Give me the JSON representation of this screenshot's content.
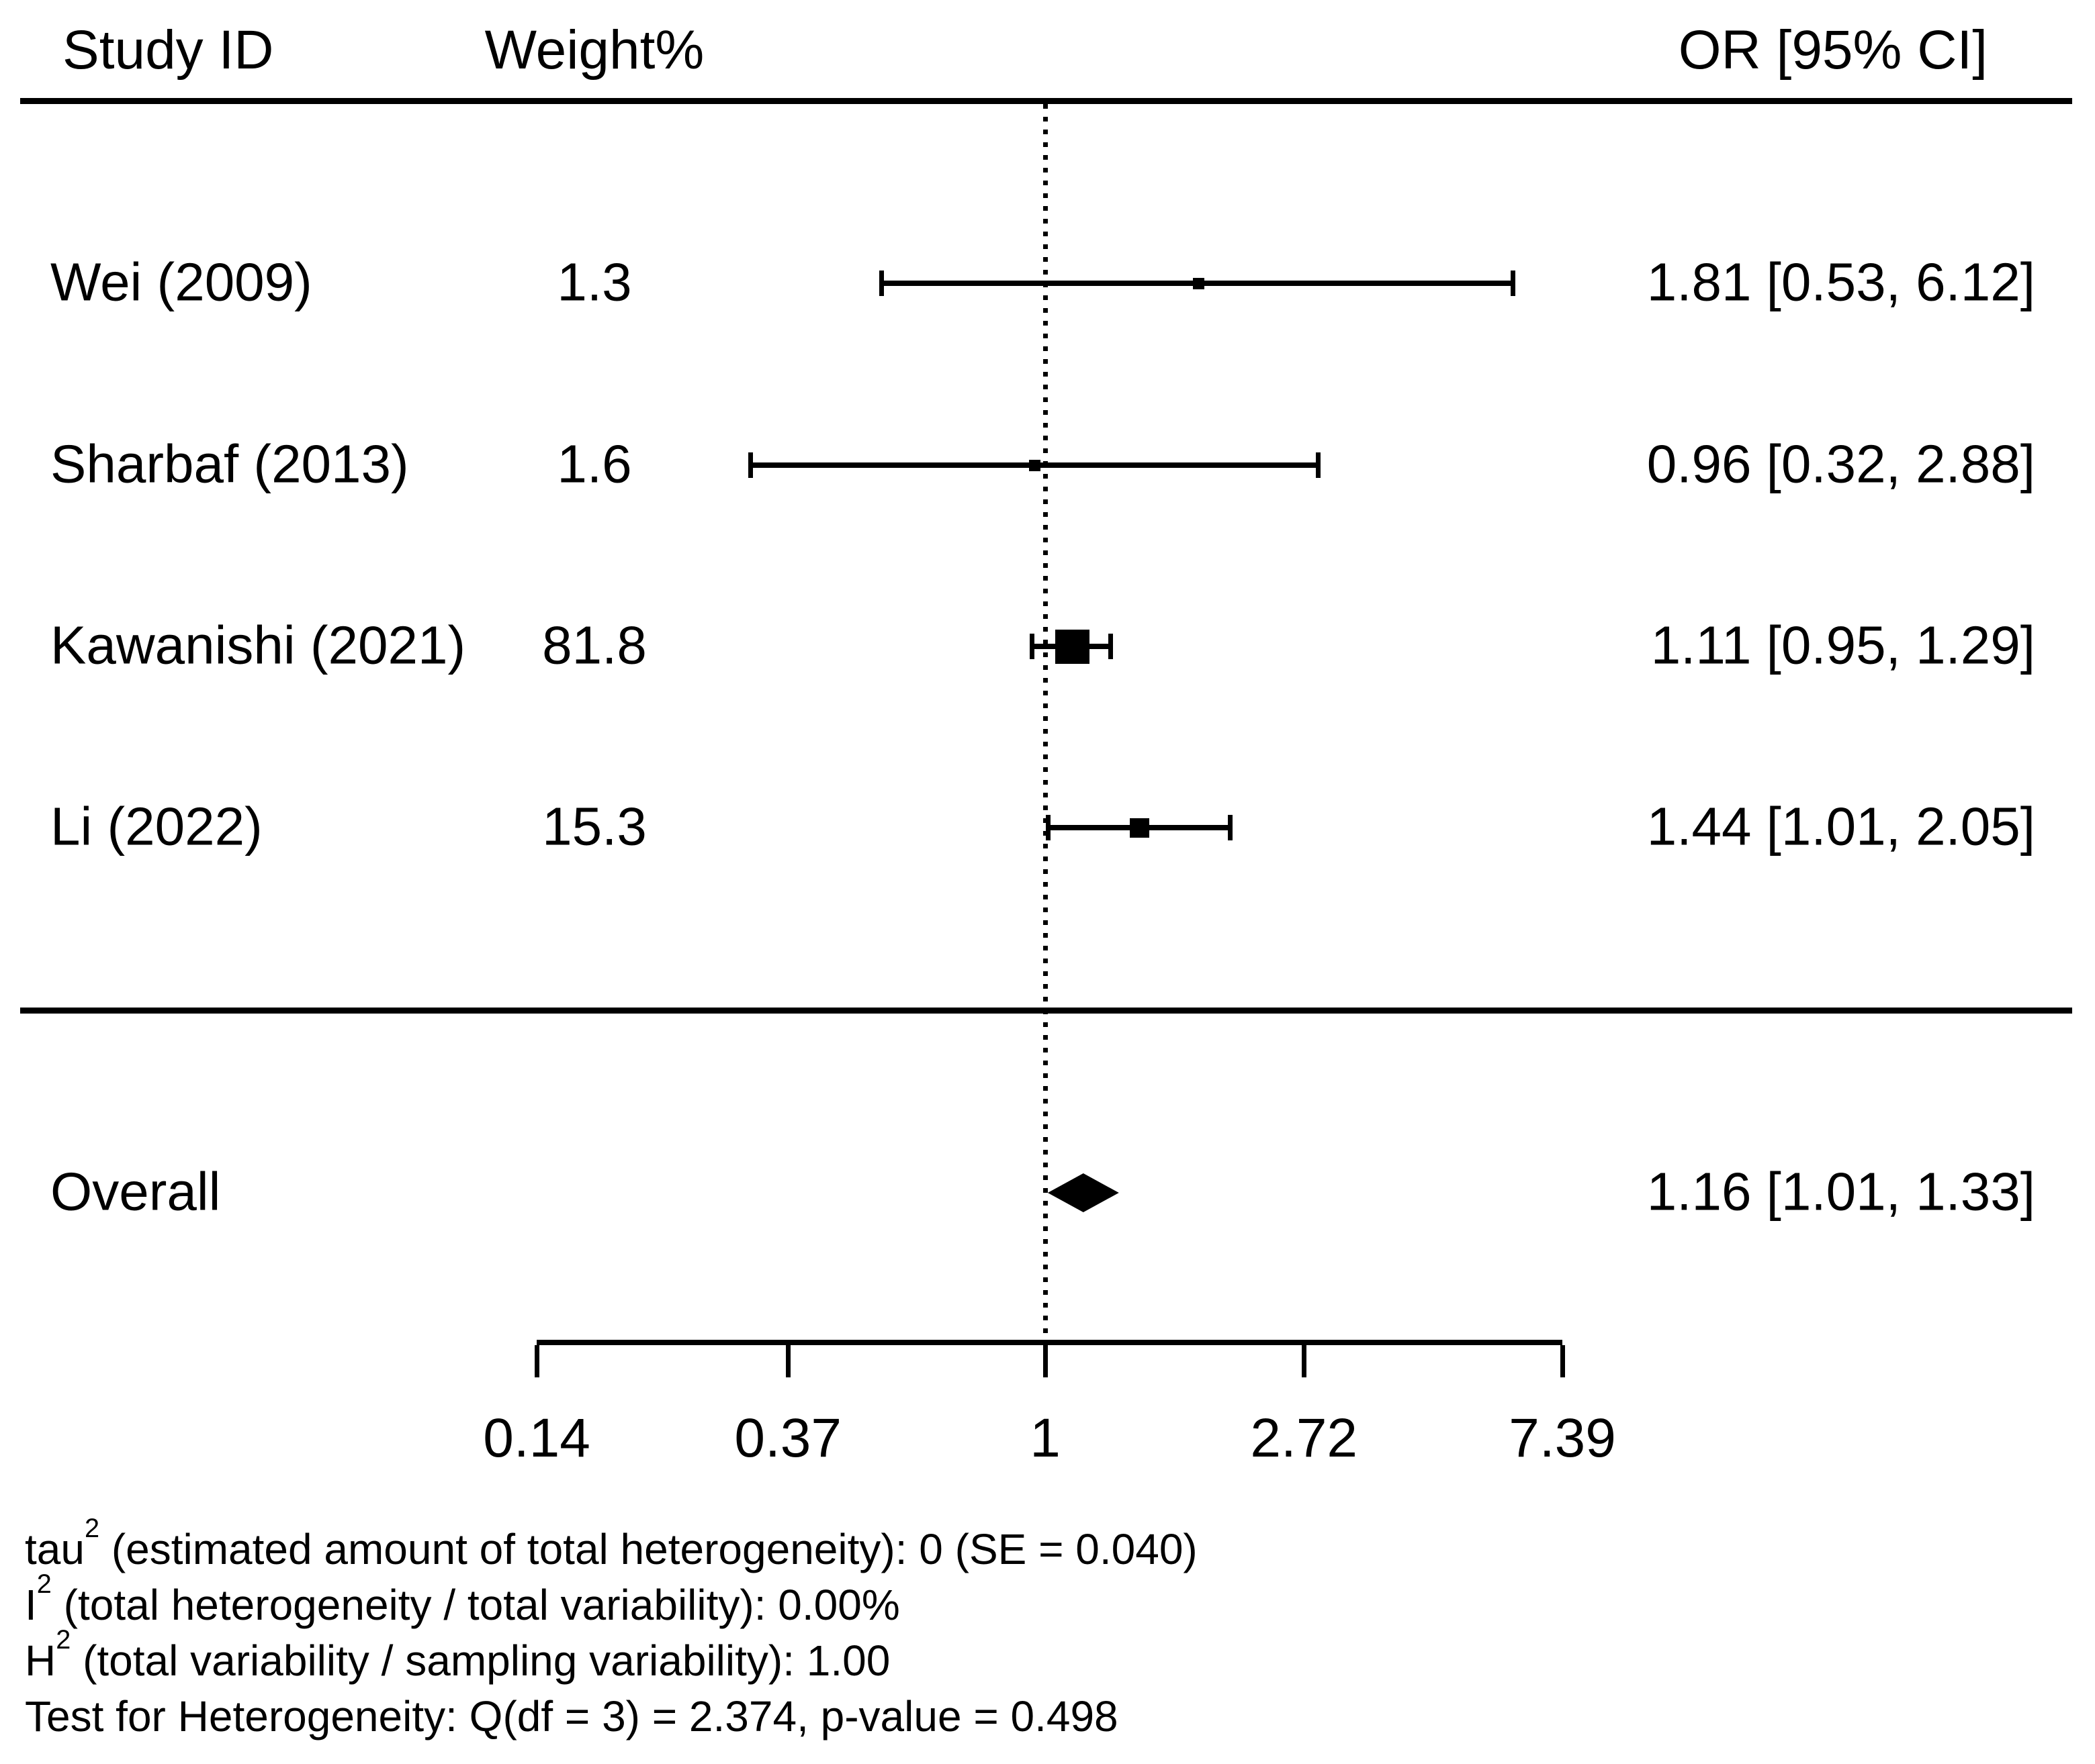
{
  "header": {
    "study_id": "Study ID",
    "weight": "Weight%",
    "or_ci": "OR [95% CI]"
  },
  "chart_data": {
    "type": "forest",
    "x_axis": {
      "scale": "log",
      "ticks": [
        0.14,
        0.37,
        1,
        2.72,
        7.39
      ],
      "labels": [
        "0.14",
        "0.37",
        "1",
        "2.72",
        "7.39"
      ],
      "range": [
        0.14,
        7.39
      ],
      "reference_line": 1
    },
    "columns": [
      "Study ID",
      "Weight%",
      "OR [95% CI]"
    ],
    "studies": [
      {
        "label": "Wei (2009)",
        "weight_pct": 1.3,
        "weight_label": "1.3",
        "or": 1.81,
        "ci_low": 0.53,
        "ci_high": 6.12,
        "or_ci_label": "1.81 [0.53, 6.12]"
      },
      {
        "label": "Sharbaf (2013)",
        "weight_pct": 1.6,
        "weight_label": "1.6",
        "or": 0.96,
        "ci_low": 0.32,
        "ci_high": 2.88,
        "or_ci_label": "0.96 [0.32, 2.88]"
      },
      {
        "label": "Kawanishi (2021)",
        "weight_pct": 81.8,
        "weight_label": "81.8",
        "or": 1.11,
        "ci_low": 0.95,
        "ci_high": 1.29,
        "or_ci_label": "1.11 [0.95, 1.29]"
      },
      {
        "label": "Li (2022)",
        "weight_pct": 15.3,
        "weight_label": "15.3",
        "or": 1.44,
        "ci_low": 1.01,
        "ci_high": 2.05,
        "or_ci_label": "1.44 [1.01, 2.05]"
      }
    ],
    "overall": {
      "label": "Overall",
      "or": 1.16,
      "ci_low": 1.01,
      "ci_high": 1.33,
      "or_ci_label": "1.16 [1.01, 1.33]"
    }
  },
  "footnotes": [
    {
      "segments": [
        {
          "t": "tau",
          "sup": false
        },
        {
          "t": "2",
          "sup": true
        },
        {
          "t": " (estimated amount of total heterogeneity): 0 (SE = 0.040)",
          "sup": false
        }
      ]
    },
    {
      "segments": [
        {
          "t": "I",
          "sup": false
        },
        {
          "t": "2",
          "sup": true
        },
        {
          "t": " (total heterogeneity / total variability): 0.00%",
          "sup": false
        }
      ]
    },
    {
      "segments": [
        {
          "t": "H",
          "sup": false
        },
        {
          "t": "2",
          "sup": true
        },
        {
          "t": " (total variability / sampling variability): 1.00",
          "sup": false
        }
      ]
    },
    {
      "segments": [
        {
          "t": "Test for Heterogeneity: Q(df = 3) = 2.374, p-value = 0.498",
          "sup": false
        }
      ]
    }
  ],
  "colors": {
    "foreground": "#000000",
    "background": "#ffffff"
  }
}
